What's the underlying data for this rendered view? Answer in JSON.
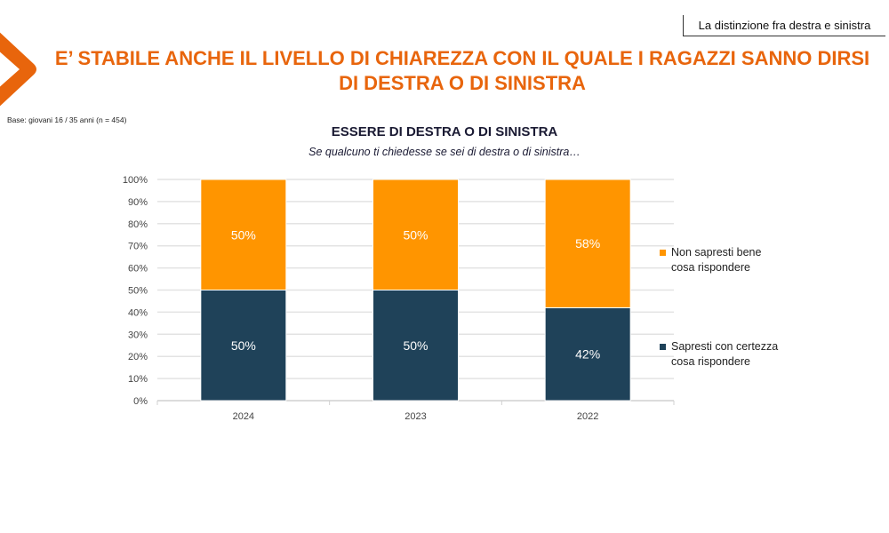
{
  "header": {
    "section_tag": "La distinzione fra destra e sinistra",
    "title_line1": "E’ STABILE ANCHE IL LIVELLO DI CHIAREZZA CON IL QUALE I RAGAZZI SANNO DIRSI",
    "title_line2": "DI DESTRA O DI SINISTRA",
    "base_note": "Base: giovani 16 / 35 anni (n = 454)"
  },
  "colors": {
    "brand": "#e8650c",
    "orange_series": "#ff9500",
    "navy_series": "#1f4259",
    "grid": "#e3e3e3"
  },
  "chart_data": {
    "type": "bar",
    "stacked": true,
    "title": "ESSERE DI DESTRA O DI SINISTRA",
    "subtitle": "Se qualcuno ti chiedesse se sei di destra o di sinistra…",
    "categories": [
      "2024",
      "2023",
      "2022"
    ],
    "series": [
      {
        "name": "Sapresti con certezza cosa rispondere",
        "values": [
          50,
          50,
          42
        ],
        "labels": [
          "50%",
          "50%",
          "42%"
        ],
        "color": "#1f4259"
      },
      {
        "name": "Non sapresti bene cosa rispondere",
        "values": [
          50,
          50,
          58
        ],
        "labels": [
          "50%",
          "50%",
          "58%"
        ],
        "color": "#ff9500"
      }
    ],
    "xlabel": "",
    "ylabel": "",
    "ylim": [
      0,
      100
    ],
    "yticks": [
      "0%",
      "10%",
      "20%",
      "30%",
      "40%",
      "50%",
      "60%",
      "70%",
      "80%",
      "90%",
      "100%"
    ],
    "grid": true,
    "legend_position": "right"
  }
}
